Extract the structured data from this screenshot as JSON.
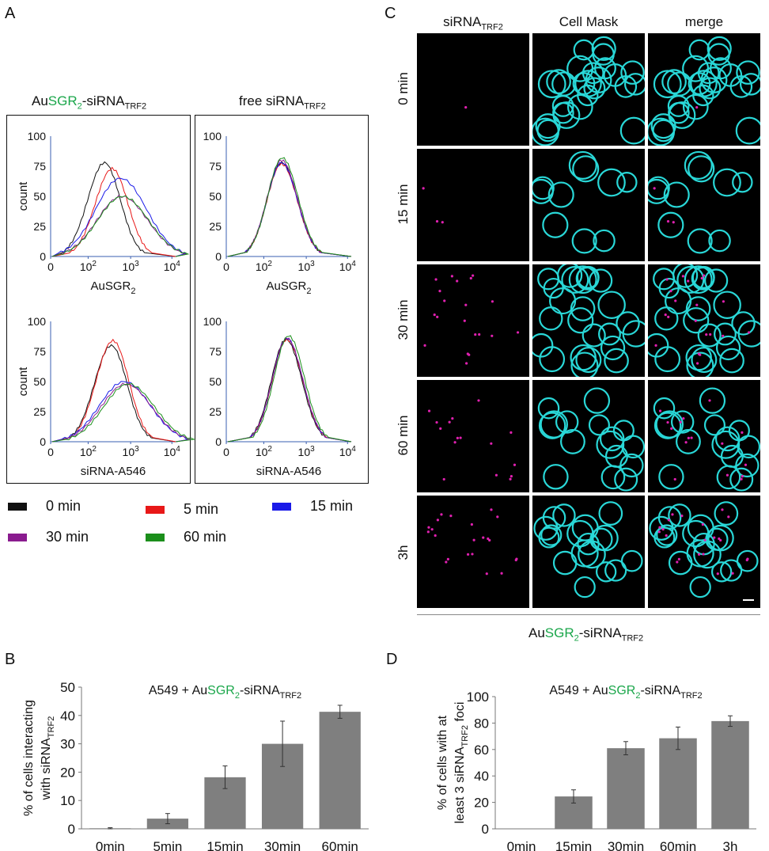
{
  "panel_labels": {
    "a": "A",
    "b": "B",
    "c": "C",
    "d": "D"
  },
  "colors": {
    "0 min": "#111111",
    "5 min": "#e81818",
    "15 min": "#1a1ae8",
    "30 min": "#8a1b8f",
    "60 min": "#1b8f1b",
    "bar": "#7f7f7f",
    "cell": "#29d7d7",
    "sirna": "#e020b0"
  },
  "panel_a": {
    "left_title": {
      "pre": "Au",
      "green": "SGR",
      "green_sub": "2",
      "post": "-siRNA",
      "post_sub": "TRF2"
    },
    "right_title": {
      "pre": "free siRNA",
      "post_sub": "TRF2"
    },
    "ylabel": "count",
    "yticks": [
      "0",
      "25",
      "50",
      "75",
      "100"
    ],
    "xticks": [
      {
        "base": "0",
        "exp": ""
      },
      {
        "base": "10",
        "exp": "2"
      },
      {
        "base": "10",
        "exp": "3"
      },
      {
        "base": "10",
        "exp": "4"
      }
    ],
    "xlabel_top": {
      "text": "AuSGR",
      "sub": "2"
    },
    "xlabel_bottom": "siRNA-A546",
    "legend": [
      "0 min",
      "5 min",
      "15 min",
      "30 min",
      "60 min"
    ]
  },
  "panel_c": {
    "col_headers": [
      {
        "text": "siRNA",
        "sub": "TRF2"
      },
      {
        "text": "Cell Mask",
        "sub": ""
      },
      {
        "text": "merge",
        "sub": ""
      }
    ],
    "row_labels": [
      "0 min",
      "15 min",
      "30 min",
      "60 min",
      "3h"
    ],
    "footer": {
      "pre": "Au",
      "green": "SGR",
      "green_sub": "2",
      "post": "-siRNA",
      "post_sub": "TRF2"
    }
  },
  "chart_data": [
    {
      "type": "line",
      "panel": "A",
      "subpanel": "AuSGR2-siRNATRF2 / AuSGR2",
      "xlabel": "AuSGR2",
      "ylabel": "count",
      "xscale": "log",
      "ylim": [
        0,
        100
      ],
      "series": [
        {
          "name": "0 min",
          "peak_x": 90,
          "peak_y": 78
        },
        {
          "name": "5 min",
          "peak_x": 160,
          "peak_y": 73
        },
        {
          "name": "15 min",
          "peak_x": 300,
          "peak_y": 65
        },
        {
          "name": "30 min",
          "peak_x": 330,
          "peak_y": 50
        },
        {
          "name": "60 min",
          "peak_x": 350,
          "peak_y": 50
        }
      ]
    },
    {
      "type": "line",
      "panel": "A",
      "subpanel": "free siRNATRF2 / AuSGR2",
      "xlabel": "AuSGR2",
      "ylabel": "count",
      "xscale": "log",
      "ylim": [
        0,
        100
      ],
      "series": [
        {
          "name": "0 min",
          "peak_x": 100,
          "peak_y": 78
        },
        {
          "name": "5 min",
          "peak_x": 100,
          "peak_y": 77
        },
        {
          "name": "15 min",
          "peak_x": 100,
          "peak_y": 78
        },
        {
          "name": "30 min",
          "peak_x": 100,
          "peak_y": 80
        },
        {
          "name": "60 min",
          "peak_x": 105,
          "peak_y": 82
        }
      ]
    },
    {
      "type": "line",
      "panel": "A",
      "subpanel": "AuSGR2-siRNATRF2 / siRNA-A546",
      "xlabel": "siRNA-A546",
      "ylabel": "count",
      "xscale": "log",
      "ylim": [
        0,
        100
      ],
      "series": [
        {
          "name": "0 min",
          "peak_x": 150,
          "peak_y": 80
        },
        {
          "name": "5 min",
          "peak_x": 170,
          "peak_y": 84
        },
        {
          "name": "15 min",
          "peak_x": 400,
          "peak_y": 50
        },
        {
          "name": "30 min",
          "peak_x": 450,
          "peak_y": 48
        },
        {
          "name": "60 min",
          "peak_x": 550,
          "peak_y": 48
        }
      ]
    },
    {
      "type": "line",
      "panel": "A",
      "subpanel": "free siRNATRF2 / siRNA-A546",
      "xlabel": "siRNA-A546",
      "ylabel": "count",
      "xscale": "log",
      "ylim": [
        0,
        100
      ],
      "series": [
        {
          "name": "0 min",
          "peak_x": 140,
          "peak_y": 85
        },
        {
          "name": "5 min",
          "peak_x": 150,
          "peak_y": 85
        },
        {
          "name": "15 min",
          "peak_x": 150,
          "peak_y": 86
        },
        {
          "name": "30 min",
          "peak_x": 150,
          "peak_y": 86
        },
        {
          "name": "60 min",
          "peak_x": 170,
          "peak_y": 88
        }
      ]
    },
    {
      "type": "bar",
      "panel": "B",
      "title": {
        "pre": "A549 + Au",
        "green": "SGR",
        "green_sub": "2",
        "post": "-siRNA",
        "post_sub": "TRF2"
      },
      "ylabel_lines": [
        {
          "text": "% of cells interacting",
          "sub": ""
        },
        {
          "text": "with siRNA",
          "sub": "TRF2"
        }
      ],
      "categories": [
        "0min",
        "5min",
        "15min",
        "30min",
        "60min"
      ],
      "values": [
        0.2,
        3.6,
        18.2,
        30.0,
        41.3
      ],
      "errors": [
        0.2,
        1.8,
        4.0,
        8.0,
        2.3
      ],
      "yticks": [
        "0",
        "10",
        "20",
        "30",
        "40",
        "50"
      ],
      "ylim": [
        0,
        50
      ]
    },
    {
      "type": "bar",
      "panel": "D",
      "title": {
        "pre": "A549 + Au",
        "green": "SGR",
        "green_sub": "2",
        "post": "-siRNA",
        "post_sub": "TRF2"
      },
      "ylabel_lines": [
        {
          "text": "% of cells with at",
          "sub": ""
        },
        {
          "text": "least 3 siRNA",
          "sub": "TRF2",
          "after": " foci"
        }
      ],
      "categories": [
        "0min",
        "15min",
        "30min",
        "60min",
        "3h"
      ],
      "values": [
        0,
        24.5,
        61.0,
        68.5,
        81.5
      ],
      "errors": [
        0,
        5.0,
        5.0,
        8.5,
        4.0
      ],
      "yticks": [
        "0",
        "20",
        "40",
        "60",
        "80",
        "100"
      ],
      "ylim": [
        0,
        100
      ]
    }
  ]
}
